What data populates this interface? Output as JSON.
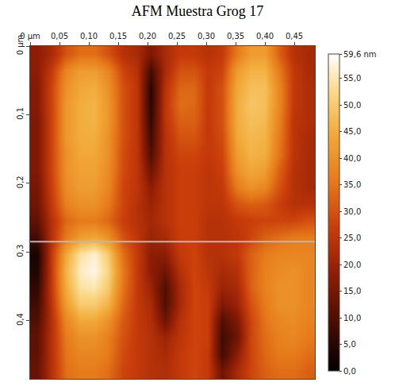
{
  "chart_data": {
    "type": "heatmap",
    "title": "AFM Muestra Grog 17",
    "x": [
      0.012,
      0.036,
      0.061,
      0.085,
      0.109,
      0.133,
      0.158,
      0.182,
      0.206,
      0.23,
      0.255,
      0.279,
      0.303,
      0.327,
      0.352,
      0.376,
      0.4,
      0.424,
      0.449,
      0.473
    ],
    "y": [
      0.012,
      0.036,
      0.061,
      0.085,
      0.109,
      0.133,
      0.158,
      0.182,
      0.206,
      0.23,
      0.255,
      0.279,
      0.303,
      0.327,
      0.352,
      0.376,
      0.4,
      0.424,
      0.449,
      0.473
    ],
    "cells": [
      [
        18,
        22,
        30,
        34,
        34,
        30,
        24,
        22,
        16,
        22,
        26,
        26,
        24,
        26,
        36,
        42,
        42,
        32,
        24,
        22
      ],
      [
        18,
        26,
        38,
        42,
        42,
        38,
        28,
        24,
        8,
        22,
        30,
        30,
        26,
        28,
        42,
        46,
        46,
        36,
        26,
        22
      ],
      [
        17,
        28,
        40,
        44,
        45,
        40,
        30,
        25,
        5,
        24,
        33,
        33,
        26,
        30,
        44,
        48,
        48,
        38,
        26,
        23
      ],
      [
        17,
        28,
        41,
        45,
        46,
        41,
        30,
        25,
        5,
        25,
        34,
        33,
        26,
        30,
        45,
        49,
        48,
        38,
        26,
        23
      ],
      [
        16,
        28,
        41,
        45,
        46,
        41,
        30,
        25,
        6,
        25,
        32,
        32,
        26,
        30,
        45,
        48,
        47,
        37,
        25,
        23
      ],
      [
        16,
        28,
        41,
        45,
        45,
        40,
        30,
        25,
        8,
        24,
        30,
        30,
        26,
        29,
        44,
        47,
        46,
        36,
        25,
        22
      ],
      [
        16,
        28,
        40,
        44,
        44,
        40,
        29,
        25,
        10,
        24,
        28,
        28,
        26,
        28,
        42,
        46,
        45,
        35,
        25,
        22
      ],
      [
        16,
        28,
        40,
        43,
        43,
        39,
        29,
        25,
        14,
        24,
        27,
        27,
        25,
        27,
        40,
        44,
        42,
        32,
        24,
        22
      ],
      [
        15,
        27,
        39,
        42,
        42,
        38,
        28,
        25,
        18,
        24,
        27,
        27,
        25,
        26,
        36,
        40,
        38,
        30,
        24,
        22
      ],
      [
        14,
        26,
        37,
        40,
        40,
        36,
        28,
        24,
        20,
        24,
        27,
        27,
        25,
        25,
        30,
        32,
        31,
        27,
        24,
        24
      ],
      [
        12,
        24,
        33,
        36,
        36,
        33,
        27,
        24,
        21,
        24,
        27,
        27,
        24,
        24,
        26,
        27,
        28,
        28,
        28,
        30
      ],
      [
        8,
        24,
        36,
        42,
        44,
        40,
        30,
        25,
        20,
        22,
        27,
        27,
        24,
        24,
        25,
        28,
        32,
        34,
        36,
        36
      ],
      [
        3,
        26,
        44,
        54,
        57,
        50,
        34,
        26,
        18,
        18,
        26,
        28,
        24,
        24,
        26,
        32,
        36,
        38,
        38,
        38
      ],
      [
        4,
        26,
        46,
        56,
        58,
        52,
        36,
        26,
        18,
        14,
        24,
        28,
        25,
        22,
        24,
        32,
        37,
        39,
        40,
        38
      ],
      [
        6,
        26,
        45,
        54,
        55,
        50,
        35,
        26,
        20,
        10,
        22,
        28,
        26,
        20,
        22,
        32,
        37,
        40,
        40,
        38
      ],
      [
        8,
        25,
        42,
        50,
        50,
        46,
        33,
        26,
        22,
        10,
        22,
        28,
        27,
        16,
        20,
        30,
        36,
        40,
        40,
        38
      ],
      [
        10,
        24,
        38,
        44,
        44,
        40,
        31,
        26,
        23,
        14,
        24,
        28,
        27,
        10,
        16,
        28,
        35,
        38,
        39,
        37
      ],
      [
        12,
        24,
        36,
        40,
        40,
        37,
        30,
        26,
        24,
        20,
        25,
        28,
        27,
        8,
        14,
        28,
        34,
        37,
        38,
        36
      ],
      [
        12,
        24,
        35,
        38,
        38,
        36,
        29,
        26,
        24,
        22,
        26,
        28,
        26,
        8,
        18,
        28,
        33,
        36,
        36,
        34
      ],
      [
        13,
        24,
        34,
        36,
        36,
        34,
        28,
        26,
        24,
        23,
        26,
        28,
        26,
        14,
        22,
        28,
        32,
        34,
        34,
        32
      ]
    ],
    "xlim": [
      0,
      0.485
    ],
    "ylim": [
      0.485,
      0
    ],
    "xticks": [
      {
        "value": 0,
        "label": "0 µm"
      },
      {
        "value": 0.05,
        "label": "0,05"
      },
      {
        "value": 0.1,
        "label": "0,10"
      },
      {
        "value": 0.15,
        "label": "0,15"
      },
      {
        "value": 0.2,
        "label": "0,20"
      },
      {
        "value": 0.25,
        "label": "0,25"
      },
      {
        "value": 0.3,
        "label": "0,30"
      },
      {
        "value": 0.35,
        "label": "0,35"
      },
      {
        "value": 0.4,
        "label": "0,40"
      },
      {
        "value": 0.45,
        "label": "0,45"
      }
    ],
    "yticks": [
      {
        "value": 0,
        "label": "0 µm"
      },
      {
        "value": 0.1,
        "label": "0,1"
      },
      {
        "value": 0.2,
        "label": "0,2"
      },
      {
        "value": 0.3,
        "label": "0,3"
      },
      {
        "value": 0.4,
        "label": "0,4"
      }
    ],
    "colorbar_range": [
      0,
      59.6
    ],
    "colorbar_ticks": [
      {
        "value": 0,
        "label": "0,0"
      },
      {
        "value": 5,
        "label": "5,0"
      },
      {
        "value": 10,
        "label": "10,0"
      },
      {
        "value": 15,
        "label": "15,0"
      },
      {
        "value": 20,
        "label": "20,0"
      },
      {
        "value": 25,
        "label": "25,0"
      },
      {
        "value": 30,
        "label": "30,0"
      },
      {
        "value": 35,
        "label": "35,0"
      },
      {
        "value": 40,
        "label": "40,0"
      },
      {
        "value": 45,
        "label": "45,0"
      },
      {
        "value": 50,
        "label": "50,0"
      },
      {
        "value": 55,
        "label": "55,0"
      },
      {
        "value": 59.6,
        "label": "59,6 nm"
      }
    ],
    "profile_y": 0.285
  }
}
